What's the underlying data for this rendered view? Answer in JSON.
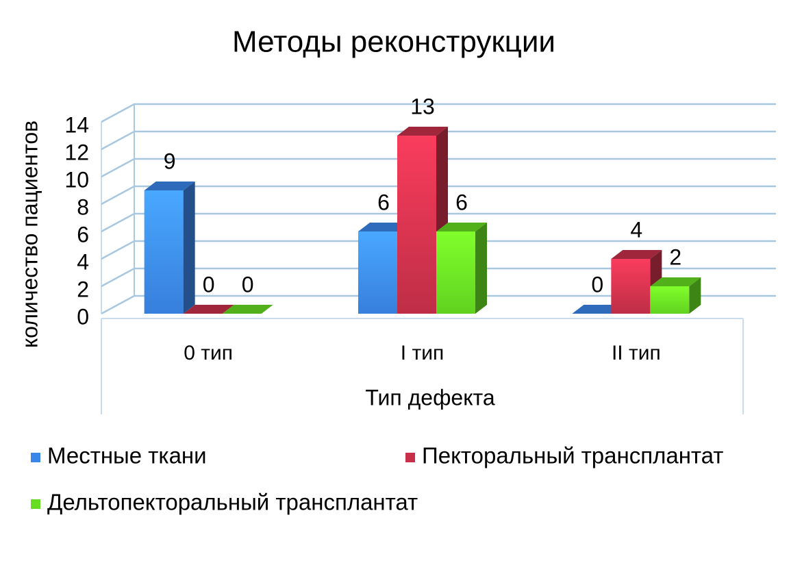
{
  "chart_data": {
    "type": "bar3d",
    "title": "Методы реконструкции",
    "x_label": "Тип дефекта",
    "y_label": "количество пациентов",
    "categories": [
      "0 тип",
      "I тип",
      "II тип"
    ],
    "series": [
      {
        "name": "Местные ткани",
        "color": "#3a86e8",
        "values": [
          9,
          6,
          0
        ]
      },
      {
        "name": "Пекторальный трансплантат",
        "color": "#c8304a",
        "values": [
          0,
          13,
          4
        ]
      },
      {
        "name": "Дельтопекторальный трансплантат",
        "color": "#66dd22",
        "values": [
          0,
          6,
          2
        ]
      }
    ],
    "ylim": [
      0,
      14
    ],
    "yticks": [
      0,
      2,
      4,
      6,
      8,
      10,
      12,
      14
    ],
    "grid": true
  }
}
